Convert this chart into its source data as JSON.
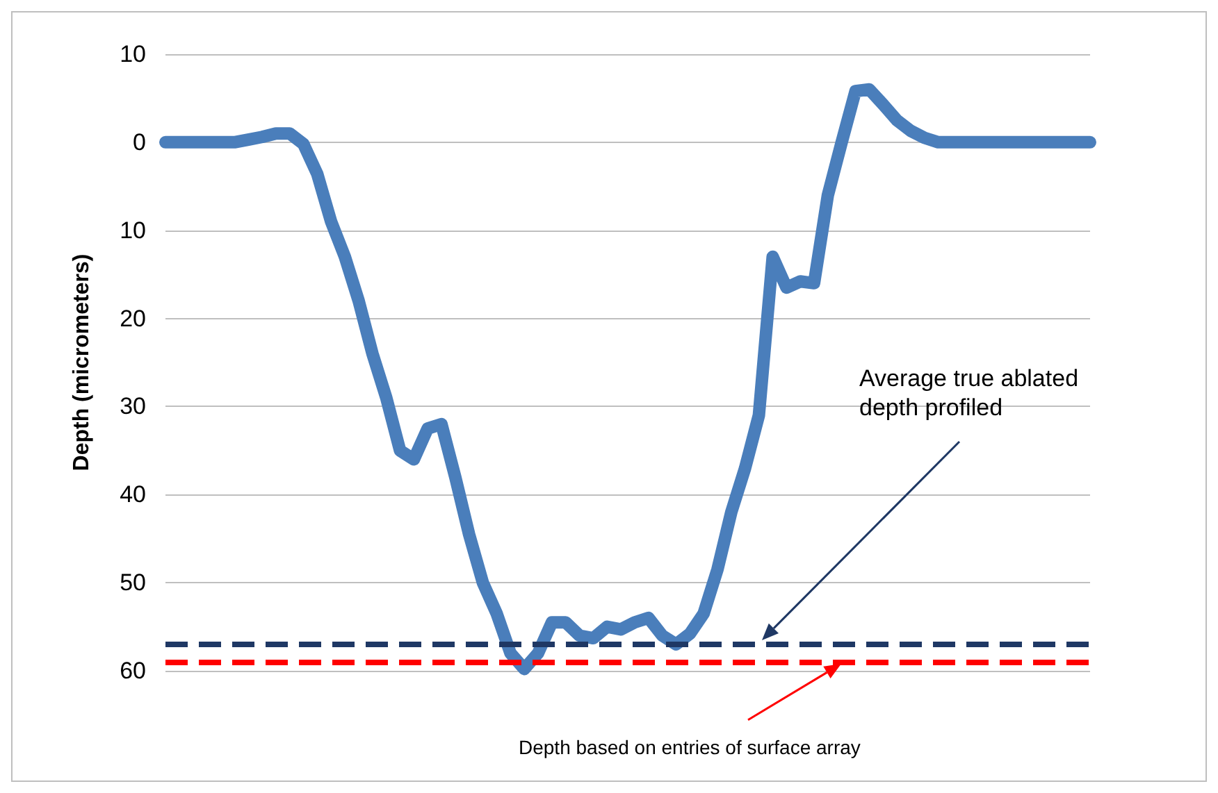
{
  "chart_data": {
    "type": "line",
    "ylabel": "Depth (micrometers)",
    "categories": [
      null,
      null,
      null,
      null,
      null,
      null,
      null,
      null,
      null,
      null,
      null,
      null,
      null,
      null,
      null,
      null,
      null,
      null,
      null,
      null,
      null,
      null,
      null,
      null,
      null,
      null,
      null,
      null,
      null,
      null,
      null,
      null,
      null,
      null,
      null,
      null,
      null,
      null,
      null,
      null,
      null,
      null,
      null,
      null,
      null,
      null,
      null,
      null,
      null,
      null,
      null,
      null,
      null,
      null,
      null,
      null,
      null,
      null,
      null,
      null,
      null,
      null,
      null,
      null,
      null,
      null,
      null,
      null
    ],
    "series": [
      {
        "color": "#4a7ebb",
        "values": [
          0,
          0,
          0,
          0,
          0,
          0,
          -0.3,
          -0.6,
          -1,
          -1,
          0.2,
          3.6,
          9,
          13,
          18,
          24,
          29,
          35,
          36,
          32.5,
          32,
          38,
          44.5,
          50,
          53.5,
          58,
          59.8,
          58,
          54.5,
          54.5,
          56,
          56.3,
          55,
          55.3,
          54.5,
          54,
          56,
          57,
          55.8,
          53.5,
          48.5,
          42,
          37,
          31,
          13,
          16.5,
          15.8,
          16,
          6,
          0,
          -5.8,
          -6,
          -4.3,
          -2.5,
          -1.3,
          -0.5,
          0,
          0,
          0,
          0,
          0,
          0,
          0,
          0,
          0,
          0,
          0,
          0
        ]
      }
    ],
    "ylim": [
      60,
      -10
    ],
    "yticks": [
      {
        "value": -10,
        "label": "10"
      },
      0,
      10,
      20,
      30,
      40,
      50,
      60
    ],
    "grid": "y",
    "tick_labels": "y",
    "line_style": "solid",
    "annotations": [
      "Average true ablated depth profiled",
      "Depth based on entries of surface array"
    ],
    "ref_lines": [
      {
        "axis": "y",
        "value": 57,
        "color": "#1f3864",
        "line_style": "dashed"
      },
      {
        "axis": "y",
        "value": 59,
        "color": "#ff0000",
        "line_style": "dashed"
      }
    ]
  }
}
